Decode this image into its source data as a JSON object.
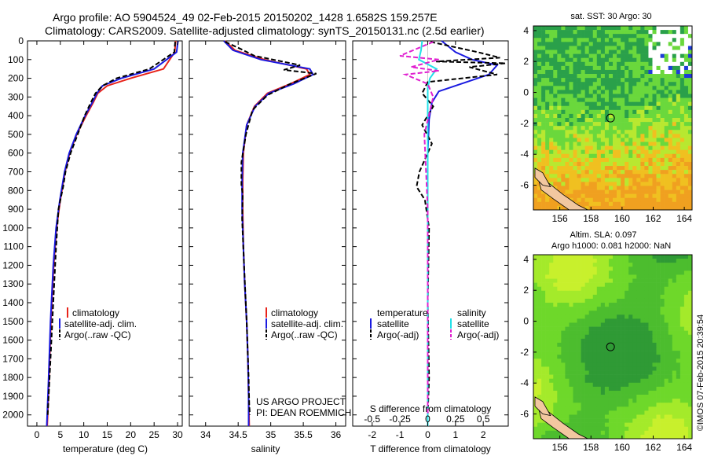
{
  "title_line1": "Argo profile: AO 5904524_49 02-Feb-2015 20150202_1428 1.6582S 159.257E",
  "title_line2": "Climatology: CARS2009. Satellite-adjusted climatology: synTS_20150131.nc (2.5d earlier)",
  "project_line1": "US ARGO PROJECT",
  "project_line2": "PI: DEAN ROEMMICH",
  "credit": "©IMOS 07-Feb-2015 20:39:54",
  "colors": {
    "climatology": "#e8231a",
    "satellite": "#1a1ae0",
    "argo": "#000000",
    "satellite_s": "#22e0e8",
    "argo_s": "#e020d0"
  },
  "chart_data": [
    {
      "type": "line",
      "name": "temperature-profile",
      "xlabel": "temperature (deg C)",
      "ylabel": "",
      "xlim": [
        -2,
        31
      ],
      "ylim": [
        2060,
        0
      ],
      "xticks": [
        0,
        5,
        10,
        15,
        20,
        25,
        30
      ],
      "xtick_labels": [
        "0",
        "5",
        "10",
        "15",
        "20",
        "25",
        "30"
      ],
      "yticks": [
        0,
        100,
        200,
        300,
        400,
        500,
        600,
        700,
        800,
        900,
        1000,
        1100,
        1200,
        1300,
        1400,
        1500,
        1600,
        1700,
        1800,
        1900,
        2000
      ],
      "ytick_labels": [
        "0",
        "100",
        "200",
        "300",
        "400",
        "500",
        "600",
        "700",
        "800",
        "900",
        "1000",
        "1100",
        "1200",
        "1300",
        "1400",
        "1500",
        "1600",
        "1700",
        "1800",
        "1900",
        "2000"
      ],
      "legend": [
        "climatology",
        "satellite-adj. clim.",
        "Argo(..raw -QC)"
      ],
      "series": [
        {
          "name": "climatology",
          "x": [
            29.6,
            29.4,
            27,
            20,
            15,
            13,
            12,
            10.5,
            8.5,
            7,
            6,
            5,
            4.2,
            3.6,
            3,
            2.6,
            2.3,
            2.2
          ],
          "y": [
            0,
            60,
            150,
            200,
            240,
            280,
            330,
            400,
            500,
            600,
            700,
            850,
            1000,
            1200,
            1500,
            1800,
            2000,
            2060
          ]
        },
        {
          "name": "satellite",
          "x": [
            30.1,
            29.8,
            25,
            18,
            14,
            12.8,
            11.8,
            10.3,
            8.4,
            6.9,
            5.9,
            4.9,
            4.1,
            3.5,
            2.9,
            2.5,
            2.2,
            2.1
          ],
          "y": [
            0,
            60,
            150,
            200,
            240,
            280,
            330,
            400,
            500,
            600,
            700,
            850,
            1000,
            1200,
            1500,
            1800,
            2000,
            2060
          ]
        },
        {
          "name": "argo",
          "x": [
            29.5,
            29.3,
            24,
            17,
            14,
            12.5,
            11.5,
            10.2,
            8.7,
            7.2,
            6.1,
            5.6,
            4.6,
            4.1,
            3.5,
            2.9,
            2.5,
            2.3
          ],
          "y": [
            5,
            60,
            150,
            200,
            240,
            280,
            330,
            400,
            500,
            600,
            700,
            780,
            900,
            1100,
            1400,
            1700,
            1900,
            2000
          ]
        }
      ]
    },
    {
      "type": "line",
      "name": "salinity-profile",
      "xlabel": "salinity",
      "xlim": [
        33.75,
        36.15
      ],
      "ylim": [
        2060,
        0
      ],
      "xticks": [
        34,
        34.5,
        35,
        35.5,
        36
      ],
      "xtick_labels": [
        "34",
        "34.5",
        "35",
        "35.5",
        "36"
      ],
      "legend": [
        "climatology",
        "satellite-adj. clim.",
        "Argo(..raw -QC)"
      ],
      "series": [
        {
          "name": "climatology",
          "x": [
            34.3,
            34.45,
            34.9,
            35.55,
            35.6,
            35.3,
            34.95,
            34.75,
            34.63,
            34.58,
            34.57,
            34.57,
            34.58,
            34.6,
            34.63,
            34.65,
            34.66,
            34.67
          ],
          "y": [
            0,
            50,
            100,
            150,
            180,
            230,
            280,
            350,
            450,
            600,
            750,
            900,
            1100,
            1300,
            1500,
            1700,
            1900,
            2060
          ]
        },
        {
          "name": "satellite",
          "x": [
            34.28,
            34.42,
            34.85,
            35.6,
            35.65,
            35.35,
            34.97,
            34.76,
            34.63,
            34.57,
            34.56,
            34.56,
            34.58,
            34.6,
            34.63,
            34.65,
            34.66,
            34.66
          ],
          "y": [
            0,
            50,
            100,
            150,
            180,
            230,
            280,
            350,
            450,
            600,
            750,
            900,
            1100,
            1300,
            1500,
            1700,
            1900,
            2060
          ]
        },
        {
          "name": "argo",
          "x": [
            34.3,
            34.55,
            34.75,
            35.45,
            35.2,
            35.7,
            35.3,
            34.95,
            34.72,
            34.62,
            34.55,
            34.55,
            34.57,
            34.56,
            34.59,
            34.63,
            34.66,
            34.67,
            34.68
          ],
          "y": [
            5,
            45,
            80,
            130,
            155,
            175,
            230,
            290,
            370,
            500,
            650,
            770,
            820,
            950,
            1200,
            1500,
            1800,
            1950,
            2000
          ]
        }
      ]
    },
    {
      "type": "line",
      "name": "difference-profile",
      "xlabel": "T difference from climatology",
      "xlabel_top": "S difference from climatology",
      "xlim": [
        -2.7,
        2.9
      ],
      "ylim": [
        2060,
        0
      ],
      "xticks": [
        -2,
        -1,
        0,
        1,
        2
      ],
      "xtick_labels": [
        "-2",
        "-1",
        "0",
        "1",
        "2"
      ],
      "s_ticks": [
        -0.5,
        -0.25,
        0,
        0.25,
        0.5
      ],
      "s_tick_labels": [
        "-0.5",
        "-0.25",
        "0",
        "0.25",
        "0.5"
      ],
      "legend_title_t": "temperature",
      "legend_title_s": "salinity",
      "legend_t": [
        "satellite",
        "Argo(-adj)"
      ],
      "legend_s": [
        "satellite",
        "Argo(-adj)"
      ],
      "series": [
        {
          "name": "T satellite",
          "x": [
            0.5,
            1.0,
            1.6,
            2.5,
            2.2,
            1.2,
            0.4,
            0.15,
            0.05,
            0.0,
            0.0,
            0.0,
            0.0,
            0.0
          ],
          "y": [
            0,
            60,
            100,
            130,
            180,
            230,
            270,
            330,
            420,
            600,
            800,
            1200,
            1600,
            2060
          ]
        },
        {
          "name": "T Argo",
          "x": [
            0.1,
            1.8,
            2.6,
            0.3,
            2.8,
            1.5,
            2.5,
            0.0,
            -0.2,
            0.2,
            -0.2,
            0.15,
            -0.3,
            -0.4,
            -0.1,
            0.05,
            0.0,
            0.05,
            0.0
          ],
          "y": [
            5,
            60,
            90,
            110,
            120,
            140,
            180,
            220,
            280,
            350,
            450,
            550,
            700,
            780,
            850,
            1000,
            1400,
            1800,
            2000
          ]
        },
        {
          "name": "S satellite",
          "x": [
            -0.05,
            -0.06,
            -0.08,
            0.08,
            0.02,
            0.0,
            0.0,
            0.0,
            0.0,
            0.0,
            0.0,
            0.0
          ],
          "y": [
            0,
            50,
            100,
            150,
            200,
            250,
            300,
            400,
            700,
            1100,
            1600,
            2060
          ]
        },
        {
          "name": "S Argo",
          "x": [
            0.05,
            -0.25,
            0.1,
            -0.15,
            0.1,
            -0.2,
            0.0,
            0.05,
            -0.03,
            0.0,
            0.0,
            0.0
          ],
          "y": [
            5,
            80,
            100,
            140,
            160,
            180,
            230,
            300,
            500,
            900,
            1500,
            2000
          ]
        }
      ]
    },
    {
      "type": "heatmap",
      "name": "sat-sst-map",
      "title": "sat. SST: 30 Argo: 30",
      "xlim": [
        154.3,
        164.5
      ],
      "ylim": [
        -7.6,
        4.3
      ],
      "xticks": [
        156,
        158,
        160,
        162,
        164
      ],
      "xtick_labels": [
        "156",
        "158",
        "160",
        "162",
        "164"
      ],
      "yticks": [
        4,
        2,
        0,
        -2,
        -4,
        -6
      ],
      "ytick_labels": [
        "4",
        "2",
        "0",
        "-2",
        "-4",
        "-6"
      ],
      "marker": {
        "lon": 159.257,
        "lat": -1.6582
      }
    },
    {
      "type": "heatmap",
      "name": "sla-map",
      "title_line1": "Altim. SLA: 0.097",
      "title_line2": "Argo h1000: 0.081 h2000: NaN",
      "xlim": [
        154.3,
        164.5
      ],
      "ylim": [
        -7.6,
        4.3
      ],
      "xticks": [
        156,
        158,
        160,
        162,
        164
      ],
      "xtick_labels": [
        "156",
        "158",
        "160",
        "162",
        "164"
      ],
      "yticks": [
        4,
        2,
        0,
        -2,
        -4,
        -6
      ],
      "ytick_labels": [
        "4",
        "2",
        "0",
        "-2",
        "-4",
        "-6"
      ],
      "marker": {
        "lon": 159.257,
        "lat": -1.6582
      }
    }
  ]
}
